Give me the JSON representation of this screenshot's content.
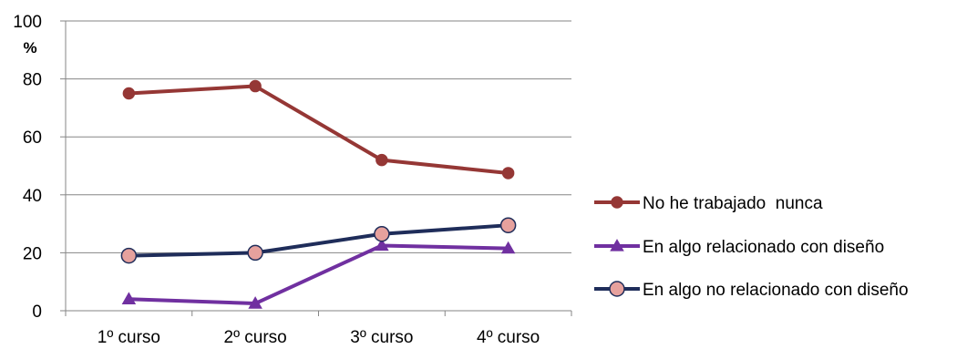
{
  "chart_data": {
    "type": "line",
    "categories": [
      "1º curso",
      "2º curso",
      "3º curso",
      "4º curso"
    ],
    "ylim": [
      0,
      100
    ],
    "yticks": [
      0,
      20,
      40,
      60,
      80,
      100
    ],
    "y_unit": "%",
    "grid": true,
    "legend_position": "right",
    "series": [
      {
        "name": "No he trabajado  nunca",
        "values": [
          75,
          77.5,
          52,
          47.5
        ],
        "color": "#953735",
        "marker": "circle",
        "marker_fill": "#953735"
      },
      {
        "name": "En algo relacionado con diseño",
        "values": [
          4,
          2.5,
          22.5,
          21.5
        ],
        "color": "#7030a0",
        "marker": "triangle",
        "marker_fill": "#7030a0"
      },
      {
        "name": "En algo no relacionado con diseño",
        "values": [
          19,
          20,
          26.5,
          29.5
        ],
        "color": "#1f2d5a",
        "marker": "circle",
        "marker_fill": "#e6a19d"
      }
    ]
  }
}
